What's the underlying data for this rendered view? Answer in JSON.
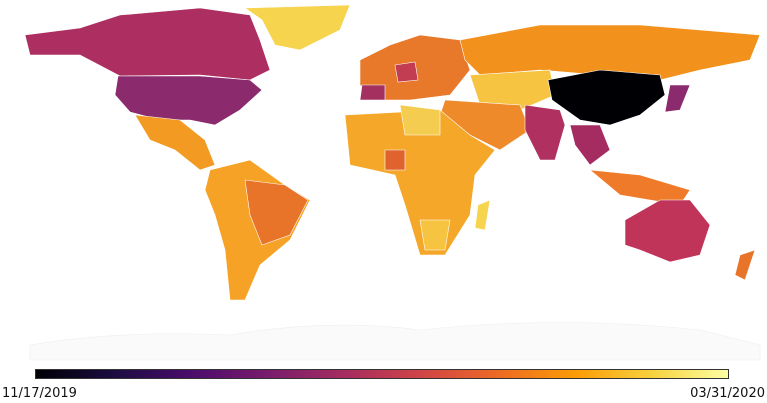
{
  "colorbar": {
    "min_label": "11/17/2019",
    "max_label": "03/31/2020"
  }
}
